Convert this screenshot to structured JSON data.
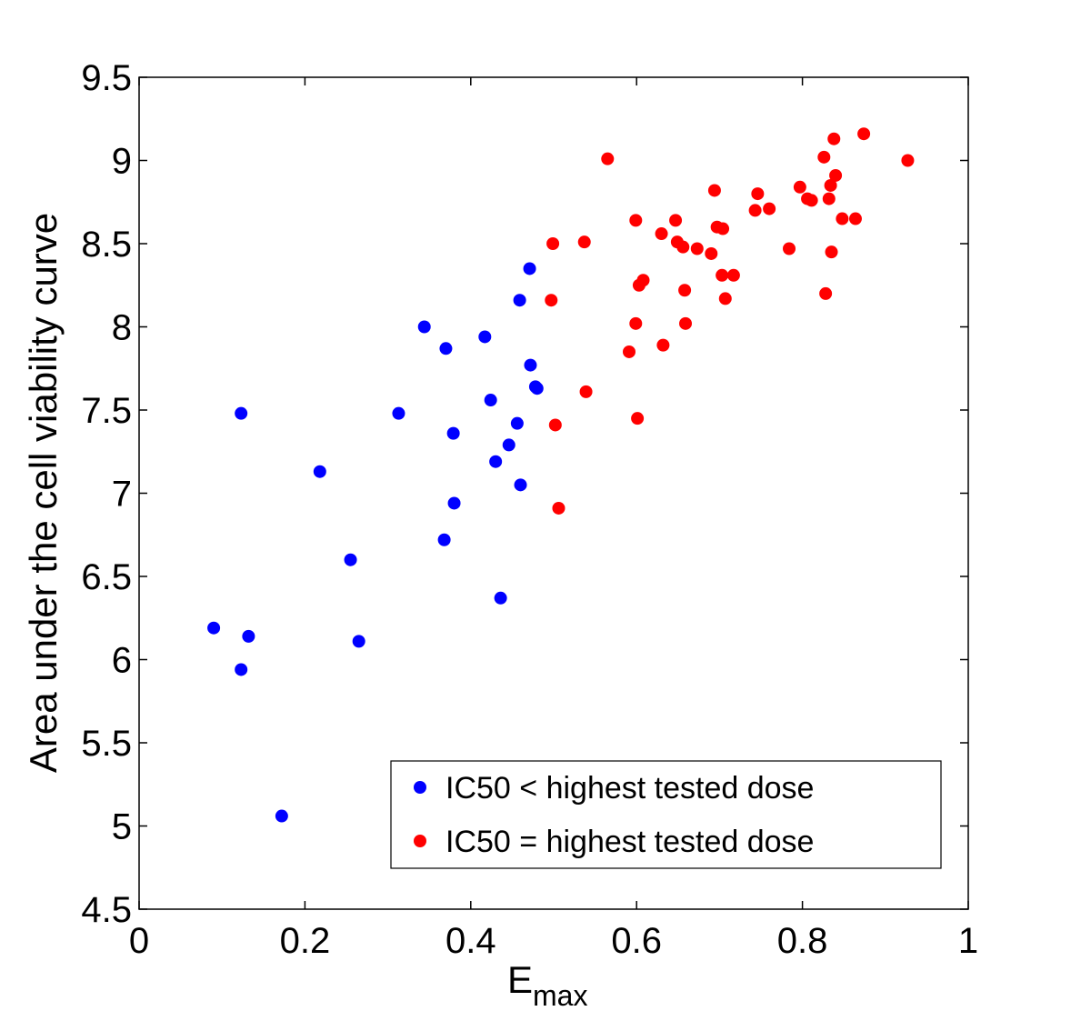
{
  "chart_data": {
    "type": "scatter",
    "title": "",
    "xlabel": "E",
    "xlabel_subscript": "max",
    "ylabel": "Area under the cell viability curve",
    "xlim": [
      0,
      1
    ],
    "ylim": [
      4.5,
      9.5
    ],
    "x_ticks": [
      0,
      0.2,
      0.4,
      0.6,
      0.8,
      1
    ],
    "x_tick_labels": [
      "0",
      "0.2",
      "0.4",
      "0.6",
      "0.8",
      "1"
    ],
    "y_ticks": [
      4.5,
      5,
      5.5,
      6,
      6.5,
      7,
      7.5,
      8,
      8.5,
      9,
      9.5
    ],
    "y_tick_labels": [
      "4.5",
      "5",
      "5.5",
      "6",
      "6.5",
      "7",
      "7.5",
      "8",
      "8.5",
      "9",
      "9.5"
    ],
    "grid": false,
    "legend_position": "bottom-right",
    "series": [
      {
        "name": "IC50 < highest tested dose",
        "color": "#0000ff",
        "points": [
          [
            0.09,
            6.19
          ],
          [
            0.123,
            7.48
          ],
          [
            0.123,
            5.94
          ],
          [
            0.132,
            6.14
          ],
          [
            0.172,
            5.06
          ],
          [
            0.218,
            7.13
          ],
          [
            0.255,
            6.6
          ],
          [
            0.265,
            6.11
          ],
          [
            0.313,
            7.48
          ],
          [
            0.344,
            8.0
          ],
          [
            0.368,
            6.72
          ],
          [
            0.37,
            7.87
          ],
          [
            0.379,
            7.36
          ],
          [
            0.38,
            6.94
          ],
          [
            0.417,
            7.94
          ],
          [
            0.424,
            7.56
          ],
          [
            0.43,
            7.19
          ],
          [
            0.436,
            6.37
          ],
          [
            0.446,
            7.29
          ],
          [
            0.456,
            7.42
          ],
          [
            0.459,
            8.16
          ],
          [
            0.46,
            7.05
          ],
          [
            0.471,
            8.35
          ],
          [
            0.472,
            7.77
          ],
          [
            0.478,
            7.64
          ],
          [
            0.48,
            7.63
          ]
        ]
      },
      {
        "name": "IC50 = highest tested dose",
        "color": "#ff0000",
        "points": [
          [
            0.497,
            8.16
          ],
          [
            0.499,
            8.5
          ],
          [
            0.502,
            7.41
          ],
          [
            0.506,
            6.91
          ],
          [
            0.537,
            8.51
          ],
          [
            0.539,
            7.61
          ],
          [
            0.565,
            9.01
          ],
          [
            0.591,
            7.85
          ],
          [
            0.599,
            8.64
          ],
          [
            0.599,
            8.02
          ],
          [
            0.601,
            7.45
          ],
          [
            0.603,
            8.25
          ],
          [
            0.608,
            8.28
          ],
          [
            0.63,
            8.56
          ],
          [
            0.632,
            7.89
          ],
          [
            0.647,
            8.64
          ],
          [
            0.649,
            8.51
          ],
          [
            0.656,
            8.48
          ],
          [
            0.658,
            8.22
          ],
          [
            0.659,
            8.02
          ],
          [
            0.673,
            8.47
          ],
          [
            0.69,
            8.44
          ],
          [
            0.694,
            8.82
          ],
          [
            0.697,
            8.6
          ],
          [
            0.703,
            8.31
          ],
          [
            0.704,
            8.59
          ],
          [
            0.707,
            8.17
          ],
          [
            0.717,
            8.31
          ],
          [
            0.743,
            8.7
          ],
          [
            0.746,
            8.8
          ],
          [
            0.76,
            8.71
          ],
          [
            0.784,
            8.47
          ],
          [
            0.797,
            8.84
          ],
          [
            0.806,
            8.77
          ],
          [
            0.811,
            8.76
          ],
          [
            0.826,
            9.02
          ],
          [
            0.828,
            8.2
          ],
          [
            0.832,
            8.77
          ],
          [
            0.834,
            8.85
          ],
          [
            0.835,
            8.45
          ],
          [
            0.838,
            9.13
          ],
          [
            0.84,
            8.91
          ],
          [
            0.848,
            8.65
          ],
          [
            0.864,
            8.65
          ],
          [
            0.874,
            9.16
          ],
          [
            0.927,
            9.0
          ]
        ]
      }
    ]
  }
}
